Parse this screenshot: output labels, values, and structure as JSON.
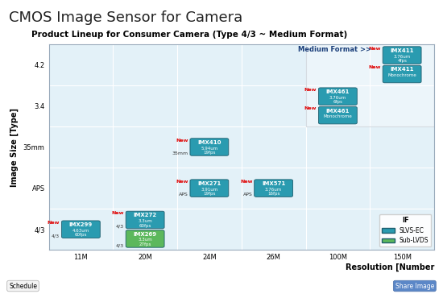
{
  "chart_data": {
    "type": "scatter",
    "title": "CMOS Image Sensor for Camera",
    "subtitle": "Product Lineup for Consumer Camera (Type 4/3 ~ Medium Format)",
    "x_label": "Resolution [Number",
    "y_label": "Image Size [Type]",
    "x_categories": [
      "11M",
      "20M",
      "24M",
      "26M",
      "100M",
      "150M"
    ],
    "y_categories": [
      "4/3",
      "APS",
      "35mm",
      "3.4",
      "4.2"
    ],
    "grid": true,
    "legend": "lower right",
    "legend_title": "IF",
    "region": {
      "text": "Medium Format >>",
      "x": [
        "100M",
        "150M"
      ],
      "y": [
        "3.4",
        "4.2"
      ]
    },
    "buttons": [
      "Schedule",
      "Share Image"
    ],
    "series": [
      {
        "name": "SLVS-EC",
        "color": "#2a9bb0",
        "values": [
          {
            "x": "11M",
            "y": "4/3",
            "name": "IMX299",
            "details": [
              "4.63um",
              "60fps"
            ],
            "tag": "New",
            "side_label": "4/3"
          },
          {
            "x": "20M",
            "y": "4/3",
            "name": "IMX272",
            "details": [
              "3.3um",
              "60fps"
            ],
            "tag": "New",
            "side_label": "4/3"
          },
          {
            "x": "24M",
            "y": "35mm",
            "name": "IMX410",
            "details": [
              "5.94um",
              "19fps"
            ],
            "tag": "New",
            "side_label": "35mm"
          },
          {
            "x": "24M",
            "y": "APS",
            "name": "IMX271",
            "details": [
              "3.91um",
              "19fps"
            ],
            "tag": "New",
            "side_label": "APS"
          },
          {
            "x": "26M",
            "y": "APS",
            "name": "IMX571",
            "details": [
              "3.76um",
              "16fps"
            ],
            "tag": "New",
            "side_label": "APS"
          },
          {
            "x": "100M",
            "y": "3.4",
            "name": "IMX461",
            "details": [
              "3.76um",
              "6fps"
            ],
            "tag": "New"
          },
          {
            "x": "100M",
            "y": "3.4",
            "name": "IMX461",
            "details": [
              "Monochrome"
            ],
            "tag": "New"
          },
          {
            "x": "150M",
            "y": "4.2",
            "name": "IMX411",
            "details": [
              "3.76um",
              "4fps"
            ],
            "tag": "New"
          },
          {
            "x": "150M",
            "y": "4.2",
            "name": "IMX411",
            "details": [
              "Monochrome"
            ],
            "tag": "New"
          }
        ]
      },
      {
        "name": "Sub-LVDS",
        "color": "#5cb85c",
        "values": [
          {
            "x": "20M",
            "y": "4/3",
            "name": "IMX269",
            "details": [
              "3.3um",
              "27fps"
            ],
            "side_label": "4/3"
          }
        ]
      }
    ]
  }
}
